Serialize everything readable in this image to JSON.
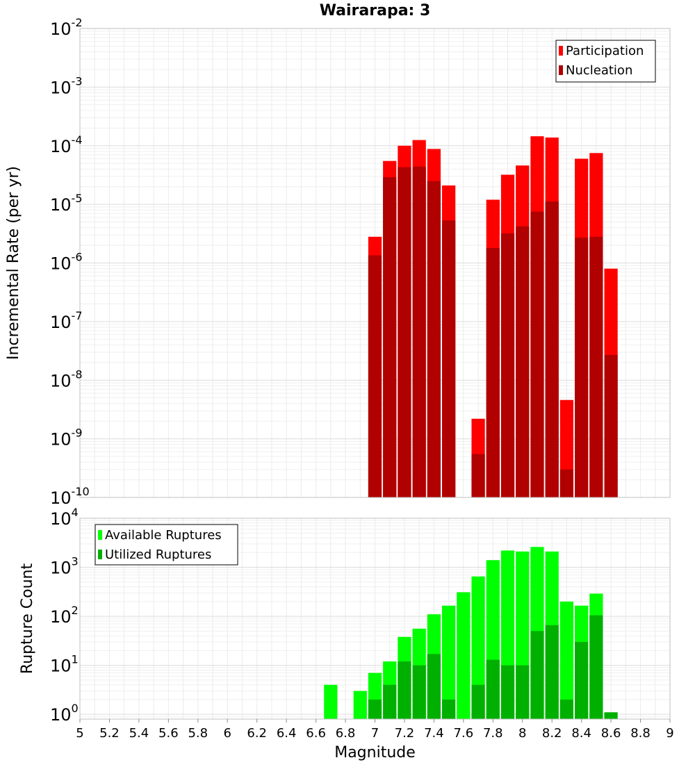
{
  "chart_data": [
    {
      "type": "bar",
      "title": "Wairarapa: 3",
      "ylabel": "Incremental Rate (per yr)",
      "xlabel": "",
      "xlim": [
        5,
        9
      ],
      "ylim": [
        1e-10,
        0.01
      ],
      "yscale": "log",
      "bar_width": 0.1,
      "grid": true,
      "legend_position": "top-right",
      "y_ticks": [
        {
          "base": "10",
          "exp": "-10",
          "value": 1e-10
        },
        {
          "base": "10",
          "exp": "-9",
          "value": 1e-09
        },
        {
          "base": "10",
          "exp": "-8",
          "value": 1e-08
        },
        {
          "base": "10",
          "exp": "-7",
          "value": 1e-07
        },
        {
          "base": "10",
          "exp": "-6",
          "value": 1e-06
        },
        {
          "base": "10",
          "exp": "-5",
          "value": 1e-05
        },
        {
          "base": "10",
          "exp": "-4",
          "value": 0.0001
        },
        {
          "base": "10",
          "exp": "-3",
          "value": 0.001
        },
        {
          "base": "10",
          "exp": "-2",
          "value": 0.01
        }
      ],
      "series": [
        {
          "name": "Participation",
          "color": "#ff0000",
          "x": [
            7.0,
            7.1,
            7.2,
            7.3,
            7.4,
            7.5,
            7.7,
            7.8,
            7.9,
            8.0,
            8.1,
            8.2,
            8.3,
            8.4,
            8.5,
            8.6
          ],
          "values": [
            2.8e-06,
            5.5e-05,
            0.0001,
            0.000125,
            8.8e-05,
            2.1e-05,
            2.2e-09,
            1.2e-05,
            3.2e-05,
            4.6e-05,
            0.000145,
            0.000138,
            4.6e-09,
            6e-05,
            7.5e-05,
            8e-07
          ]
        },
        {
          "name": "Nucleation",
          "color": "#b00000",
          "x": [
            7.0,
            7.1,
            7.2,
            7.3,
            7.4,
            7.5,
            7.7,
            7.8,
            7.9,
            8.0,
            8.1,
            8.2,
            8.3,
            8.4,
            8.5,
            8.6
          ],
          "values": [
            1.35e-06,
            2.9e-05,
            4.3e-05,
            4.4e-05,
            2.5e-05,
            5.3e-06,
            5.5e-10,
            1.8e-06,
            3.2e-06,
            4.2e-06,
            7.5e-06,
            1.12e-05,
            3e-10,
            2.7e-06,
            2.8e-06,
            2.7e-08
          ]
        }
      ]
    },
    {
      "type": "bar",
      "title": "",
      "ylabel": "Rupture Count",
      "xlabel": "Magnitude",
      "xlim": [
        5,
        9
      ],
      "ylim": [
        0.8,
        10000
      ],
      "yscale": "log",
      "bar_width": 0.1,
      "grid": true,
      "legend_position": "top-left",
      "x_ticks": [
        "5",
        "5.2",
        "5.4",
        "5.6",
        "5.8",
        "6",
        "6.2",
        "6.4",
        "6.6",
        "6.8",
        "7",
        "7.2",
        "7.4",
        "7.6",
        "7.8",
        "8",
        "8.2",
        "8.4",
        "8.6",
        "8.8",
        "9"
      ],
      "y_ticks": [
        {
          "base": "10",
          "exp": "0",
          "value": 1
        },
        {
          "base": "10",
          "exp": "1",
          "value": 10
        },
        {
          "base": "10",
          "exp": "2",
          "value": 100
        },
        {
          "base": "10",
          "exp": "3",
          "value": 1000
        },
        {
          "base": "10",
          "exp": "4",
          "value": 10000
        }
      ],
      "series": [
        {
          "name": "Available Ruptures",
          "color": "#00ff00",
          "x": [
            6.7,
            6.9,
            7.0,
            7.1,
            7.2,
            7.3,
            7.4,
            7.5,
            7.6,
            7.7,
            7.8,
            7.9,
            8.0,
            8.1,
            8.2,
            8.3,
            8.4,
            8.5
          ],
          "values": [
            4,
            3,
            7,
            12,
            38,
            56,
            110,
            165,
            310,
            650,
            1400,
            2200,
            2100,
            2600,
            2100,
            200,
            165,
            290
          ]
        },
        {
          "name": "Utilized Ruptures",
          "color": "#00b000",
          "x": [
            7.0,
            7.1,
            7.2,
            7.3,
            7.4,
            7.5,
            7.7,
            7.8,
            7.9,
            8.0,
            8.1,
            8.2,
            8.3,
            8.4,
            8.5,
            8.6
          ],
          "values": [
            2,
            4,
            12,
            10,
            17,
            2,
            4,
            13,
            10,
            10,
            50,
            66,
            2,
            30,
            105,
            1.1
          ]
        }
      ]
    }
  ]
}
